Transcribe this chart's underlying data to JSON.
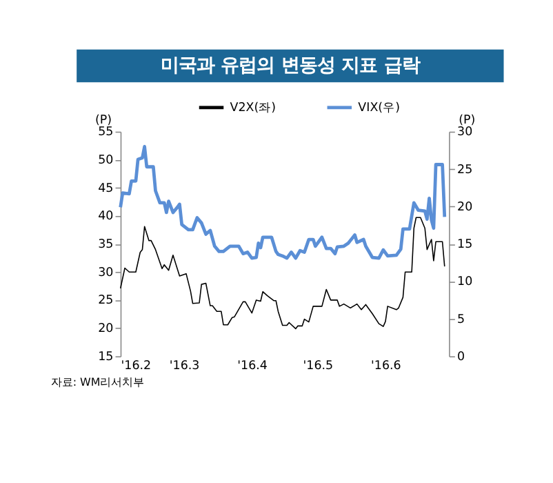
{
  "chart_data": {
    "type": "line",
    "title": "미국과 유럽의 변동성 지표 급락",
    "ylabel": "(P)",
    "y2label": "(P)",
    "annotations": [
      "자료: WM리서치부"
    ],
    "xlim": [
      "2016-02-01",
      "2016-06-30"
    ],
    "xticks": [
      {
        "value": "2016-02-01",
        "label": "'16.2"
      },
      {
        "value": "2016-03-01",
        "label": "'16.3"
      },
      {
        "value": "2016-04-01",
        "label": "'16.4"
      },
      {
        "value": "2016-05-01",
        "label": "'16.5"
      },
      {
        "value": "2016-06-01",
        "label": "'16.6"
      }
    ],
    "ylim": [
      15,
      55
    ],
    "yticks": [
      15,
      20,
      25,
      30,
      35,
      40,
      45,
      50,
      55
    ],
    "y2lim": [
      0,
      30
    ],
    "y2ticks": [
      0,
      5,
      10,
      15,
      20,
      25,
      30
    ],
    "legend": "top",
    "grid": false,
    "line_style": "solid",
    "series": [
      {
        "name": "V2X(좌)",
        "color": "#000000",
        "x": [
          "2016-02-01",
          "2016-02-03",
          "2016-02-05",
          "2016-02-08",
          "2016-02-10",
          "2016-02-11",
          "2016-02-12",
          "2016-02-14",
          "2016-02-15",
          "2016-02-17",
          "2016-02-20",
          "2016-02-21",
          "2016-02-23",
          "2016-02-25",
          "2016-02-28",
          "2016-03-02",
          "2016-03-04",
          "2016-03-05",
          "2016-03-08",
          "2016-03-09",
          "2016-03-11",
          "2016-03-13",
          "2016-03-14",
          "2016-03-16",
          "2016-03-18",
          "2016-03-19",
          "2016-03-21",
          "2016-03-23",
          "2016-03-24",
          "2016-03-28",
          "2016-03-29",
          "2016-04-01",
          "2016-04-03",
          "2016-04-05",
          "2016-04-06",
          "2016-04-08",
          "2016-04-11",
          "2016-04-12",
          "2016-04-13",
          "2016-04-15",
          "2016-04-17",
          "2016-04-18",
          "2016-04-21",
          "2016-04-22",
          "2016-04-24",
          "2016-04-25",
          "2016-04-27",
          "2016-04-29",
          "2016-05-03",
          "2016-05-05",
          "2016-05-07",
          "2016-05-10",
          "2016-05-11",
          "2016-05-13",
          "2016-05-16",
          "2016-05-19",
          "2016-05-21",
          "2016-05-23",
          "2016-05-26",
          "2016-05-29",
          "2016-05-31",
          "2016-06-01",
          "2016-06-02",
          "2016-06-06",
          "2016-06-07",
          "2016-06-09",
          "2016-06-10",
          "2016-06-13",
          "2016-06-14",
          "2016-06-15",
          "2016-06-17",
          "2016-06-19",
          "2016-06-20",
          "2016-06-22",
          "2016-06-23",
          "2016-06-24",
          "2016-06-27",
          "2016-06-28"
        ],
        "values": [
          27.1,
          30.7,
          30,
          30,
          33.5,
          34,
          38.1,
          35.6,
          35.6,
          34,
          30.6,
          31.3,
          30.3,
          33,
          29.3,
          29.7,
          26.6,
          24.4,
          24.5,
          27.8,
          28,
          24,
          24,
          23,
          23,
          20.6,
          20.6,
          21.9,
          22,
          24.7,
          24.7,
          22.7,
          25,
          24.8,
          26.5,
          25.8,
          24.9,
          24.9,
          23,
          20.5,
          20.5,
          21,
          19.9,
          20.4,
          20.4,
          21.6,
          21.1,
          23.9,
          23.9,
          26.9,
          25,
          25,
          23.9,
          24.3,
          23.6,
          24.3,
          23.3,
          24.2,
          22.6,
          20.8,
          20.3,
          21.2,
          23.9,
          23.3,
          23.6,
          25.5,
          30,
          30,
          37.8,
          39.7,
          39.7,
          37.8,
          34,
          35.8,
          32,
          35.4,
          35.4,
          31
        ]
      },
      {
        "name": "VIX(우)",
        "color": "#5b8fd6",
        "axis": "y2",
        "x": [
          "2016-02-01",
          "2016-02-02",
          "2016-02-05",
          "2016-02-06",
          "2016-02-08",
          "2016-02-09",
          "2016-02-11",
          "2016-02-12",
          "2016-02-13",
          "2016-02-16",
          "2016-02-17",
          "2016-02-19",
          "2016-02-21",
          "2016-02-22",
          "2016-02-23",
          "2016-02-25",
          "2016-02-27",
          "2016-02-28",
          "2016-02-29",
          "2016-03-03",
          "2016-03-05",
          "2016-03-07",
          "2016-03-09",
          "2016-03-11",
          "2016-03-13",
          "2016-03-15",
          "2016-03-17",
          "2016-03-19",
          "2016-03-22",
          "2016-03-26",
          "2016-03-28",
          "2016-03-30",
          "2016-04-01",
          "2016-04-03",
          "2016-04-04",
          "2016-04-05",
          "2016-04-06",
          "2016-04-10",
          "2016-04-12",
          "2016-04-13",
          "2016-04-15",
          "2016-04-17",
          "2016-04-19",
          "2016-04-21",
          "2016-04-23",
          "2016-04-25",
          "2016-04-27",
          "2016-04-29",
          "2016-04-30",
          "2016-05-03",
          "2016-05-05",
          "2016-05-07",
          "2016-05-09",
          "2016-05-10",
          "2016-05-13",
          "2016-05-15",
          "2016-05-18",
          "2016-05-19",
          "2016-05-22",
          "2016-05-23",
          "2016-05-26",
          "2016-05-29",
          "2016-05-31",
          "2016-06-02",
          "2016-06-06",
          "2016-06-08",
          "2016-06-09",
          "2016-06-12",
          "2016-06-14",
          "2016-06-16",
          "2016-06-19",
          "2016-06-20",
          "2016-06-21",
          "2016-06-22",
          "2016-06-23",
          "2016-06-24",
          "2016-06-27",
          "2016-06-28"
        ],
        "values": [
          19.9,
          21.8,
          21.7,
          23.4,
          23.4,
          26.3,
          26.5,
          28,
          25.3,
          25.3,
          22.1,
          20.5,
          20.5,
          19.2,
          20.7,
          19.2,
          19.9,
          20.3,
          17.6,
          16.9,
          16.9,
          18.5,
          17.8,
          16.3,
          16.8,
          14.7,
          14,
          14,
          14.7,
          14.7,
          13.7,
          13.9,
          13.1,
          13.2,
          15.1,
          14.5,
          15.9,
          15.9,
          14,
          13.6,
          13.4,
          13.1,
          13.9,
          13.1,
          14.1,
          13.9,
          15.6,
          15.6,
          14.7,
          15.9,
          14.4,
          14.4,
          13.7,
          14.6,
          14.7,
          15.1,
          16.2,
          15.2,
          15.6,
          14.7,
          13.2,
          13.1,
          14.2,
          13.4,
          13.5,
          14.3,
          17,
          17,
          20.5,
          19.5,
          19.4,
          18.3,
          21.1,
          18.2,
          17.1,
          25.6,
          25.6,
          18.6
        ]
      }
    ]
  }
}
